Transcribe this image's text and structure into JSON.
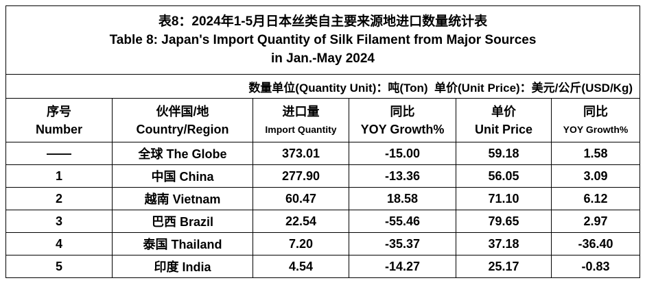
{
  "title": [
    "表8：2024年1-5月日本丝类自主要来源地进口数量统计表",
    "Table 8: Japan's Import Quantity of Silk Filament from Major Sources",
    "in Jan.-May 2024"
  ],
  "unit_note": "数量单位(Quantity Unit)：吨(Ton)  单价(Unit Price)：美元/公斤(USD/Kg)",
  "table": {
    "header": [
      [
        "序号",
        "Number"
      ],
      [
        "伙伴国/地",
        "Country/Region"
      ],
      [
        "进口量",
        "Import Quantity"
      ],
      [
        "同比",
        "YOY Growth%"
      ],
      [
        "单价",
        "Unit Price"
      ],
      [
        "同比",
        "YOY Growth%"
      ]
    ],
    "rows": [
      [
        "——",
        "全球 The Globe",
        "373.01",
        "-15.00",
        "59.18",
        "1.58"
      ],
      [
        "1",
        "中国 China",
        "277.90",
        "-13.36",
        "56.05",
        "3.09"
      ],
      [
        "2",
        "越南 Vietnam",
        "60.47",
        "18.58",
        "71.10",
        "6.12"
      ],
      [
        "3",
        "巴西 Brazil",
        "22.54",
        "-55.46",
        "79.65",
        "2.97"
      ],
      [
        "4",
        "泰国 Thailand",
        "7.20",
        "-35.37",
        "37.18",
        "-36.40"
      ],
      [
        "5",
        "印度 India",
        "4.54",
        "-14.27",
        "25.17",
        "-0.83"
      ]
    ]
  }
}
